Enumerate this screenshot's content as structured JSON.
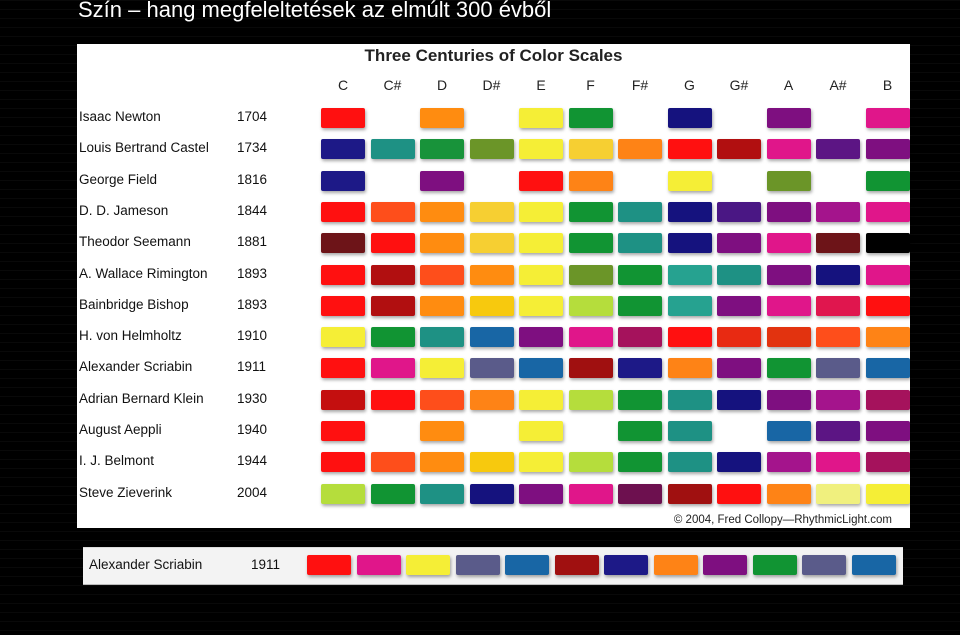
{
  "slide": {
    "title": "Szín – hang megfeleltetések az elmúlt 300 évből"
  },
  "chart": {
    "title": "Three Centuries of Color Scales",
    "credit": "© 2004, Fred Collopy—RhythmicLight.com",
    "notes": [
      "C",
      "C#",
      "D",
      "D#",
      "E",
      "F",
      "F#",
      "G",
      "G#",
      "A",
      "A#",
      "B"
    ],
    "rows": [
      {
        "name": "Isaac Newton",
        "year": "1704",
        "colors": [
          "#ff1010",
          "",
          "#ff8c10",
          "",
          "#f5ee36",
          "#119433",
          "",
          "#15127e",
          "",
          "#7e0f80",
          "",
          "#e0168a"
        ]
      },
      {
        "name": "Louis Bertrand Castel",
        "year": "1734",
        "colors": [
          "#1d1987",
          "#1e9184",
          "#18933a",
          "#6b9528",
          "#f5ee36",
          "#f6cf32",
          "#fe8316",
          "#ff1010",
          "#b10f10",
          "#e0168a",
          "#5c1584",
          "#7e0f80"
        ]
      },
      {
        "name": "George Field",
        "year": "1816",
        "colors": [
          "#1d1987",
          "",
          "#7e0f80",
          "",
          "#ff1010",
          "#fe8316",
          "",
          "#f5ee36",
          "",
          "#6b9528",
          "",
          "#119433"
        ]
      },
      {
        "name": "D. D. Jameson",
        "year": "1844",
        "colors": [
          "#ff1010",
          "#fe4e1b",
          "#ff8c10",
          "#f6cf32",
          "#f5ee36",
          "#119433",
          "#1e9184",
          "#15127e",
          "#4a1784",
          "#7e0f80",
          "#a4148c",
          "#e0168a"
        ]
      },
      {
        "name": "Theodor Seemann",
        "year": "1881",
        "colors": [
          "#6d1418",
          "#ff1010",
          "#ff8c10",
          "#f6cf32",
          "#f5ee36",
          "#119433",
          "#1e9184",
          "#15127e",
          "#7e0f80",
          "#e0168a",
          "#6d1418",
          "#000000"
        ]
      },
      {
        "name": "A. Wallace Rimington",
        "year": "1893",
        "colors": [
          "#ff1010",
          "#b10f10",
          "#fe4e1b",
          "#ff8c10",
          "#f5ee36",
          "#6b9528",
          "#119433",
          "#26a290",
          "#1e9184",
          "#7e0f80",
          "#15127e",
          "#e0168a"
        ]
      },
      {
        "name": "Bainbridge Bishop",
        "year": "1893",
        "colors": [
          "#ff1010",
          "#b10f10",
          "#ff8c10",
          "#f7c90e",
          "#f5ee36",
          "#b5dd3c",
          "#119433",
          "#26a290",
          "#7e0f80",
          "#e0168a",
          "#e0164e",
          "#ff1010"
        ]
      },
      {
        "name": "H. von Helmholtz",
        "year": "1910",
        "colors": [
          "#f5ee36",
          "#119433",
          "#1e9184",
          "#1866a5",
          "#7e0f80",
          "#e0168a",
          "#a5125c",
          "#ff1010",
          "#e82a12",
          "#e2330f",
          "#fe4e1b",
          "#fe8316"
        ]
      },
      {
        "name": "Alexander Scriabin",
        "year": "1911",
        "colors": [
          "#ff1010",
          "#e0168a",
          "#f5ee36",
          "#5a5b8a",
          "#1866a5",
          "#a01010",
          "#1d1987",
          "#fe8316",
          "#7e0f80",
          "#119433",
          "#5a5b8a",
          "#1866a5"
        ]
      },
      {
        "name": "Adrian Bernard Klein",
        "year": "1930",
        "colors": [
          "#c40f0f",
          "#ff1010",
          "#fe4e1b",
          "#fe8316",
          "#f5ee36",
          "#b5dd3c",
          "#119433",
          "#1e9184",
          "#15127e",
          "#7e0f80",
          "#a4148c",
          "#a5125c"
        ]
      },
      {
        "name": "August Aeppli",
        "year": "1940",
        "colors": [
          "#ff1010",
          "",
          "#ff8c10",
          "",
          "#f5ee36",
          "",
          "#119433",
          "#1e9184",
          "",
          "#1866a5",
          "#5c1584",
          "#7e0f80"
        ]
      },
      {
        "name": "I. J. Belmont",
        "year": "1944",
        "colors": [
          "#ff1010",
          "#fe4e1b",
          "#ff8c10",
          "#f7c90e",
          "#f5ee36",
          "#b5dd3c",
          "#119433",
          "#1e9184",
          "#15127e",
          "#a4148c",
          "#e0168a",
          "#a5125c"
        ]
      },
      {
        "name": "Steve Zieverink",
        "year": "2004",
        "colors": [
          "#b5dd3c",
          "#119433",
          "#1e9184",
          "#15127e",
          "#7e0f80",
          "#e0168a",
          "#6d104f",
          "#a01010",
          "#ff1010",
          "#fe8316",
          "#f0f07e",
          "#f5ee36"
        ]
      }
    ]
  },
  "highlight": {
    "name": "Alexander Scriabin",
    "year": "1911",
    "colors": [
      "#ff1010",
      "#e0168a",
      "#f5ee36",
      "#5a5b8a",
      "#1866a5",
      "#a01010",
      "#1d1987",
      "#fe8316",
      "#7e0f80",
      "#119433",
      "#5a5b8a",
      "#1866a5"
    ]
  }
}
